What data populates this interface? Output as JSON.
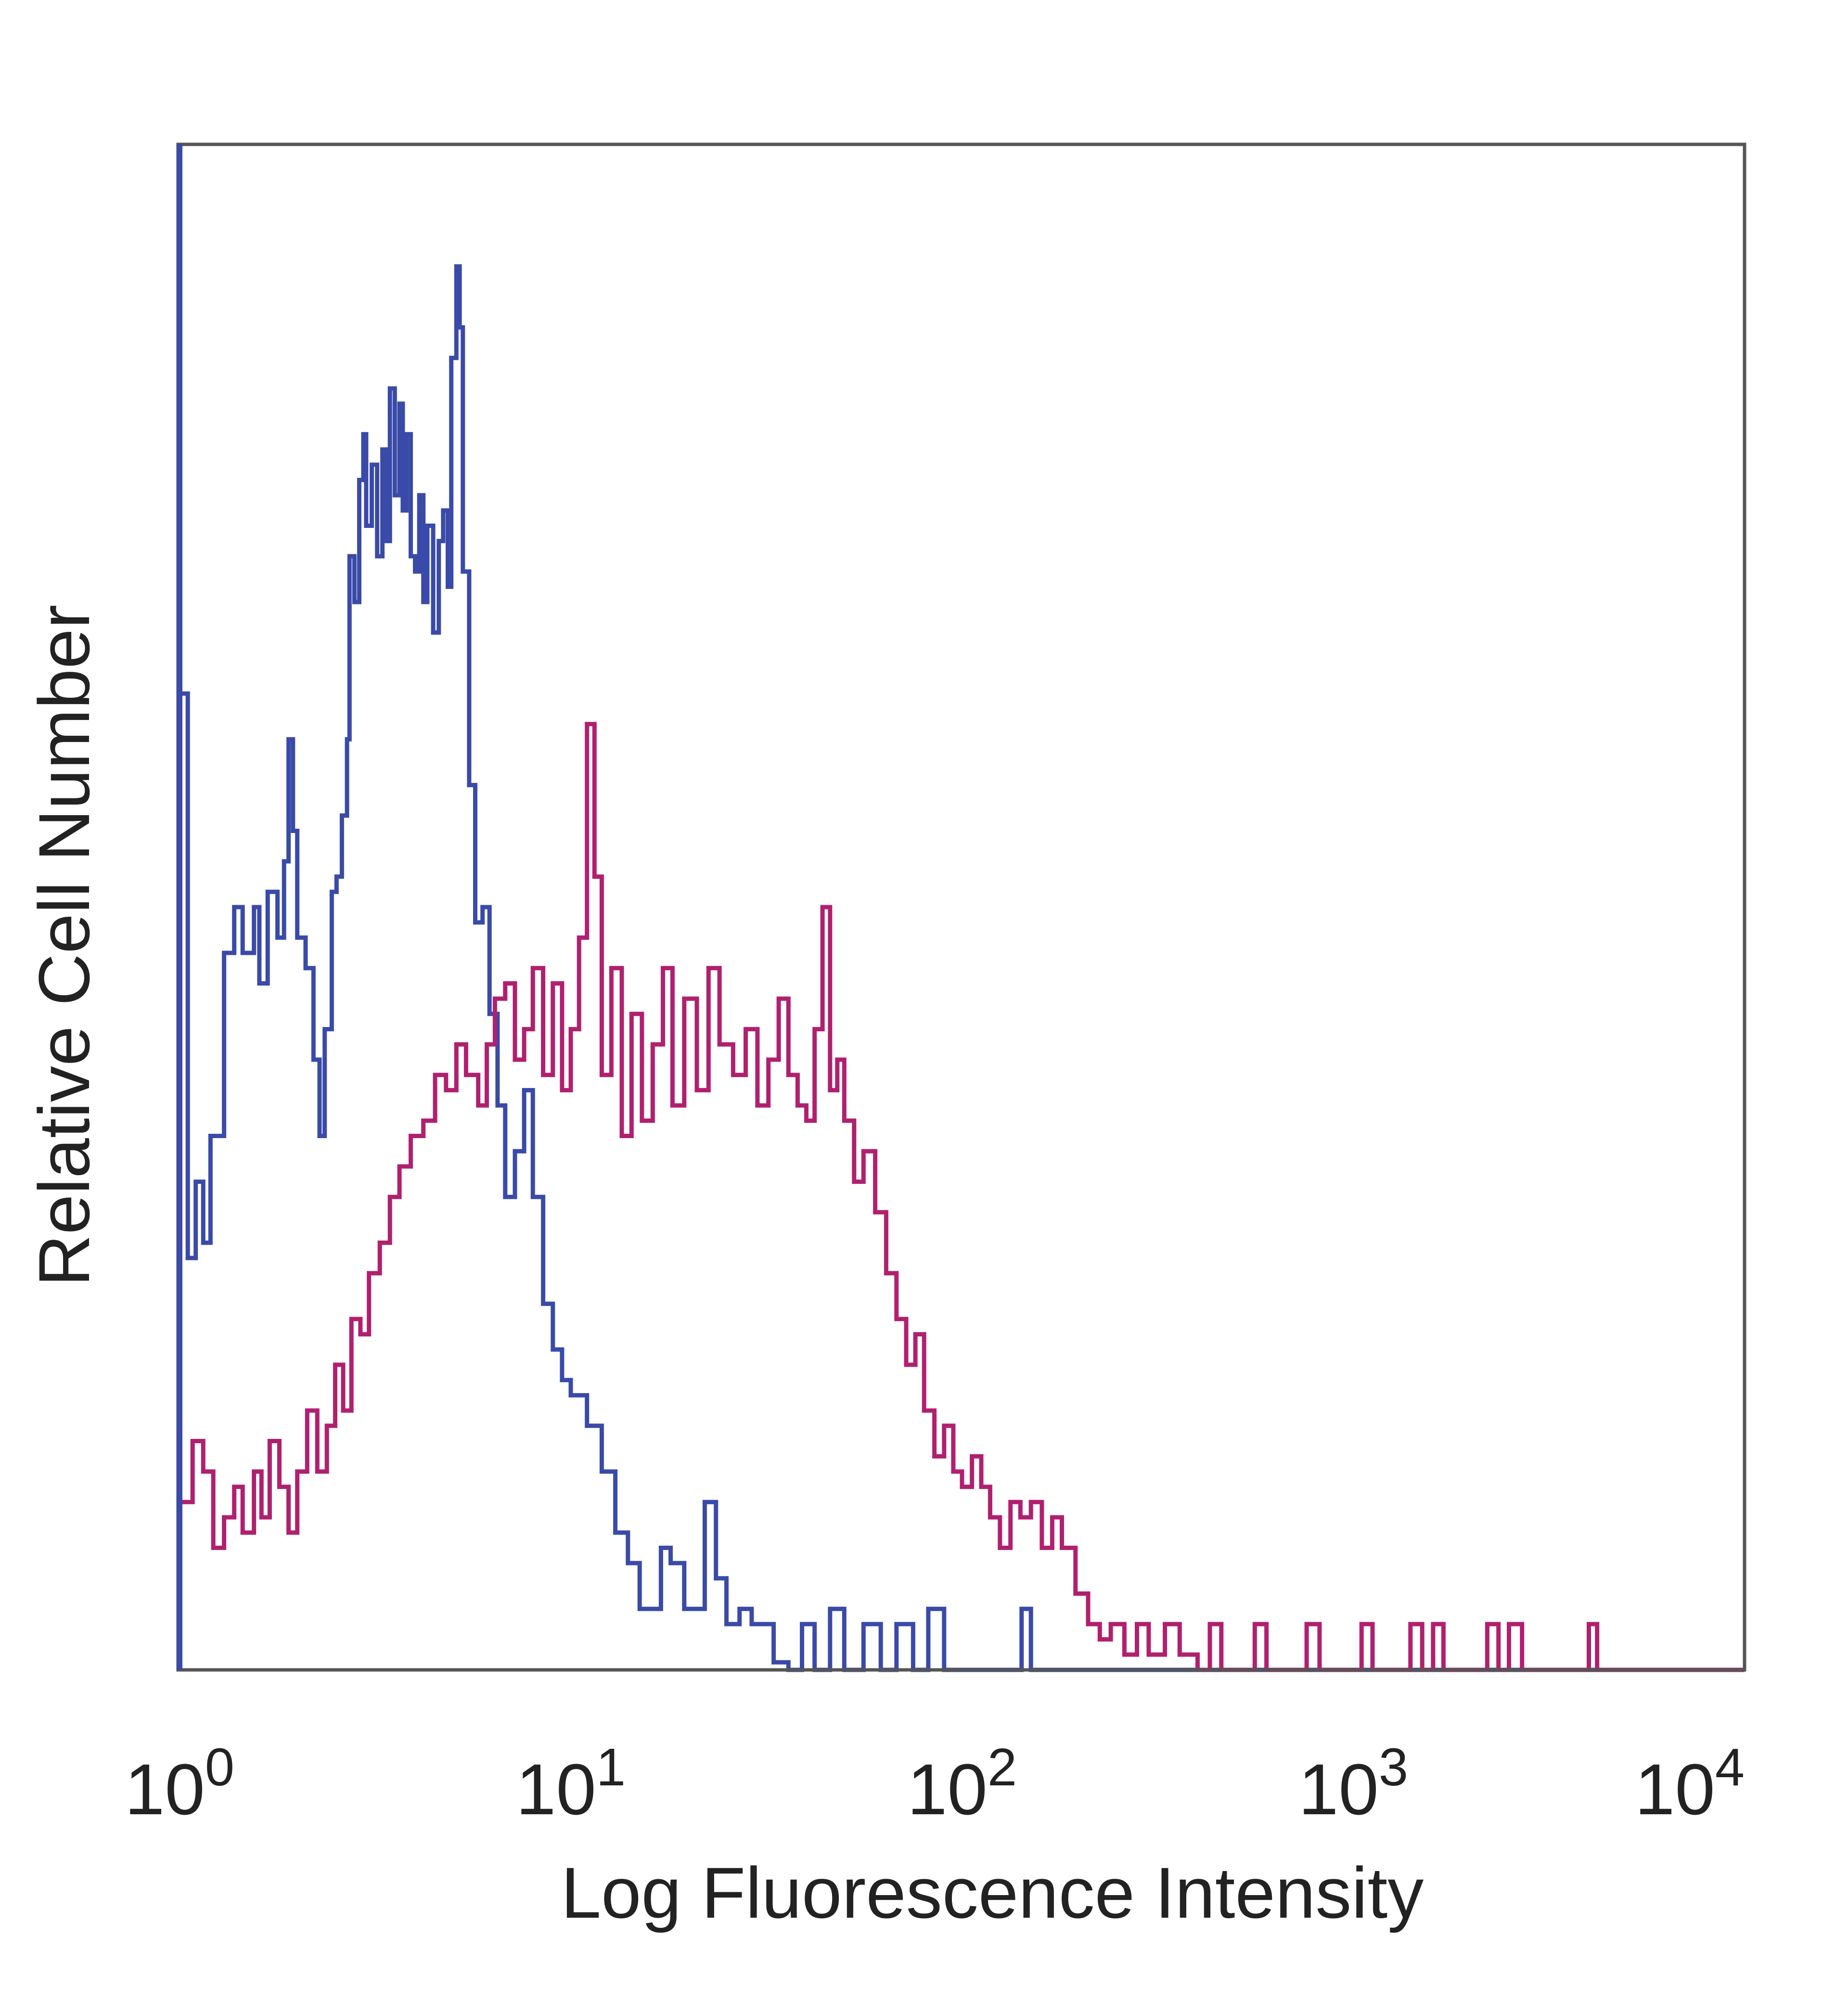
{
  "chart_data": {
    "type": "line",
    "title": "",
    "xlabel": "Log Fluorescence Intensity",
    "ylabel": "Relative Cell Number",
    "x_scale": "log",
    "xlim": [
      1,
      10000
    ],
    "ylim": [
      0,
      100
    ],
    "grid": false,
    "legend": "none",
    "x_ticks": [
      {
        "value": 1,
        "base": "10",
        "exp": "0"
      },
      {
        "value": 10,
        "base": "10",
        "exp": "1"
      },
      {
        "value": 100,
        "base": "10",
        "exp": "2"
      },
      {
        "value": 1000,
        "base": "10",
        "exp": "3"
      },
      {
        "value": 10000,
        "base": "10",
        "exp": "4"
      }
    ],
    "series": [
      {
        "color": "#3a4aa8",
        "points": [
          [
            1.0,
            64
          ],
          [
            1.05,
            27
          ],
          [
            1.1,
            32
          ],
          [
            1.15,
            28
          ],
          [
            1.2,
            35
          ],
          [
            1.3,
            47
          ],
          [
            1.38,
            50
          ],
          [
            1.45,
            47
          ],
          [
            1.55,
            50
          ],
          [
            1.6,
            45
          ],
          [
            1.68,
            51
          ],
          [
            1.78,
            48
          ],
          [
            1.85,
            53
          ],
          [
            1.9,
            61
          ],
          [
            1.95,
            55
          ],
          [
            2.0,
            48
          ],
          [
            2.1,
            46
          ],
          [
            2.2,
            40
          ],
          [
            2.28,
            35
          ],
          [
            2.35,
            42
          ],
          [
            2.45,
            51
          ],
          [
            2.52,
            52
          ],
          [
            2.6,
            56
          ],
          [
            2.68,
            61
          ],
          [
            2.72,
            73
          ],
          [
            2.8,
            70
          ],
          [
            2.88,
            78
          ],
          [
            2.95,
            81
          ],
          [
            3.0,
            75
          ],
          [
            3.1,
            79
          ],
          [
            3.2,
            73
          ],
          [
            3.3,
            80
          ],
          [
            3.38,
            74
          ],
          [
            3.45,
            84
          ],
          [
            3.55,
            77
          ],
          [
            3.65,
            83
          ],
          [
            3.72,
            76
          ],
          [
            3.8,
            81
          ],
          [
            3.9,
            73
          ],
          [
            4.0,
            72
          ],
          [
            4.1,
            77
          ],
          [
            4.2,
            70
          ],
          [
            4.3,
            75
          ],
          [
            4.45,
            68
          ],
          [
            4.6,
            74
          ],
          [
            4.72,
            76
          ],
          [
            4.85,
            71
          ],
          [
            4.95,
            86
          ],
          [
            5.1,
            92
          ],
          [
            5.2,
            88
          ],
          [
            5.3,
            72
          ],
          [
            5.5,
            58
          ],
          [
            5.7,
            49
          ],
          [
            5.95,
            50
          ],
          [
            6.2,
            43
          ],
          [
            6.5,
            37
          ],
          [
            6.8,
            31
          ],
          [
            7.2,
            34
          ],
          [
            7.6,
            38
          ],
          [
            8.0,
            31
          ],
          [
            8.5,
            24
          ],
          [
            9.0,
            21
          ],
          [
            9.5,
            19
          ],
          [
            10.0,
            18
          ],
          [
            11.0,
            16
          ],
          [
            12.0,
            13
          ],
          [
            13.0,
            9
          ],
          [
            14.0,
            7
          ],
          [
            15.0,
            4
          ],
          [
            16.0,
            4
          ],
          [
            17.0,
            8
          ],
          [
            18.0,
            7
          ],
          [
            19.5,
            4
          ],
          [
            21.0,
            4
          ],
          [
            22.0,
            11
          ],
          [
            23.5,
            6
          ],
          [
            25.0,
            3
          ],
          [
            27.0,
            4
          ],
          [
            29.0,
            3
          ],
          [
            31.0,
            3
          ],
          [
            33.0,
            0.5
          ],
          [
            36.0,
            0
          ],
          [
            39.0,
            3
          ],
          [
            42.0,
            0
          ],
          [
            46.0,
            4
          ],
          [
            50.0,
            0
          ],
          [
            56.0,
            3
          ],
          [
            62.0,
            0
          ],
          [
            68.0,
            3
          ],
          [
            75.0,
            0
          ],
          [
            82.0,
            4
          ],
          [
            90.0,
            0
          ],
          [
            100.0,
            0
          ],
          [
            130.0,
            0
          ],
          [
            142.0,
            4
          ],
          [
            150.0,
            0
          ],
          [
            200.0,
            0
          ],
          [
            10000.0,
            0
          ]
        ]
      },
      {
        "color": "#b0206f",
        "points": [
          [
            1.0,
            11
          ],
          [
            1.08,
            15
          ],
          [
            1.15,
            13
          ],
          [
            1.22,
            8
          ],
          [
            1.3,
            10
          ],
          [
            1.38,
            12
          ],
          [
            1.45,
            9
          ],
          [
            1.55,
            13
          ],
          [
            1.62,
            10
          ],
          [
            1.7,
            15
          ],
          [
            1.8,
            12
          ],
          [
            1.9,
            9
          ],
          [
            2.0,
            13
          ],
          [
            2.12,
            17
          ],
          [
            2.25,
            13
          ],
          [
            2.38,
            16
          ],
          [
            2.5,
            20
          ],
          [
            2.62,
            17
          ],
          [
            2.75,
            23
          ],
          [
            2.9,
            22
          ],
          [
            3.05,
            26
          ],
          [
            3.25,
            28
          ],
          [
            3.45,
            31
          ],
          [
            3.65,
            33
          ],
          [
            3.9,
            35
          ],
          [
            4.2,
            36
          ],
          [
            4.5,
            39
          ],
          [
            4.8,
            38
          ],
          [
            5.1,
            41
          ],
          [
            5.4,
            39
          ],
          [
            5.8,
            37
          ],
          [
            6.1,
            41
          ],
          [
            6.4,
            44
          ],
          [
            6.8,
            45
          ],
          [
            7.2,
            40
          ],
          [
            7.6,
            42
          ],
          [
            8.0,
            46
          ],
          [
            8.5,
            39
          ],
          [
            9.0,
            45
          ],
          [
            9.5,
            38
          ],
          [
            10.0,
            42
          ],
          [
            10.5,
            48
          ],
          [
            11.0,
            62
          ],
          [
            11.5,
            52
          ],
          [
            12.0,
            39
          ],
          [
            12.7,
            46
          ],
          [
            13.5,
            35
          ],
          [
            14.3,
            43
          ],
          [
            15.2,
            36
          ],
          [
            16.2,
            41
          ],
          [
            17.2,
            46
          ],
          [
            18.2,
            37
          ],
          [
            19.5,
            44
          ],
          [
            21.0,
            38
          ],
          [
            22.5,
            46
          ],
          [
            24.0,
            41
          ],
          [
            26.0,
            39
          ],
          [
            28.0,
            42
          ],
          [
            30.0,
            37
          ],
          [
            32.0,
            40
          ],
          [
            34.0,
            44
          ],
          [
            36.0,
            39
          ],
          [
            38.0,
            37
          ],
          [
            40.0,
            36
          ],
          [
            42.0,
            42
          ],
          [
            44.0,
            50
          ],
          [
            46.0,
            38
          ],
          [
            48.0,
            40
          ],
          [
            50.0,
            36
          ],
          [
            53.0,
            32
          ],
          [
            56.0,
            34
          ],
          [
            60.0,
            30
          ],
          [
            64.0,
            26
          ],
          [
            68.0,
            23
          ],
          [
            72.0,
            20
          ],
          [
            76.0,
            22
          ],
          [
            80.0,
            17
          ],
          [
            85.0,
            14
          ],
          [
            90.0,
            16
          ],
          [
            95.0,
            13
          ],
          [
            100.0,
            12
          ],
          [
            106.0,
            14
          ],
          [
            112.0,
            12
          ],
          [
            118.0,
            10
          ],
          [
            125.0,
            8
          ],
          [
            133.0,
            11
          ],
          [
            141.0,
            10
          ],
          [
            150.0,
            11
          ],
          [
            160.0,
            8
          ],
          [
            170.0,
            10
          ],
          [
            180.0,
            8
          ],
          [
            195.0,
            5
          ],
          [
            210.0,
            3
          ],
          [
            225.0,
            2
          ],
          [
            240.0,
            3
          ],
          [
            260.0,
            1
          ],
          [
            280.0,
            3
          ],
          [
            300.0,
            1
          ],
          [
            330.0,
            3
          ],
          [
            360.0,
            1
          ],
          [
            400.0,
            0
          ],
          [
            430.0,
            3
          ],
          [
            460.0,
            0
          ],
          [
            520.0,
            0
          ],
          [
            560.0,
            3
          ],
          [
            600.0,
            0
          ],
          [
            700.0,
            0
          ],
          [
            760.0,
            3
          ],
          [
            820.0,
            0
          ],
          [
            980.0,
            0
          ],
          [
            1050.0,
            3
          ],
          [
            1120.0,
            0
          ],
          [
            1300.0,
            0
          ],
          [
            1400.0,
            3
          ],
          [
            1500.0,
            0
          ],
          [
            1600.0,
            3
          ],
          [
            1700.0,
            0
          ],
          [
            2100.0,
            0
          ],
          [
            2200.0,
            3
          ],
          [
            2350.0,
            0
          ],
          [
            2500.0,
            3
          ],
          [
            2700.0,
            0
          ],
          [
            3800.0,
            0
          ],
          [
            4000.0,
            3
          ],
          [
            4200.0,
            0
          ],
          [
            10000.0,
            0
          ]
        ]
      }
    ]
  }
}
